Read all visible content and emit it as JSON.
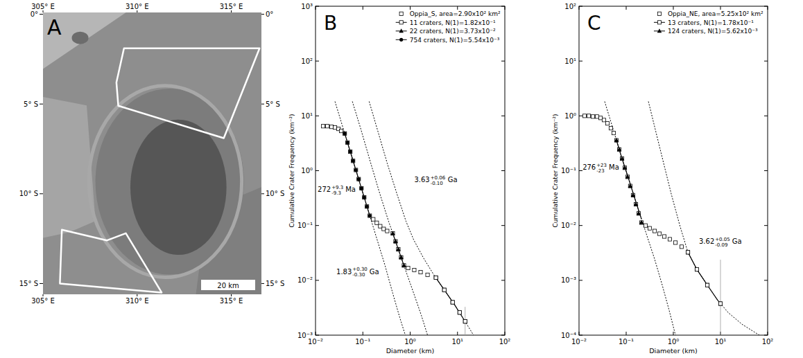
{
  "chart_data": [
    {
      "type": "map",
      "panel": "A",
      "xlim": [
        305,
        316.6
      ],
      "ylim": [
        -15.6,
        0.1
      ],
      "xticks": [
        {
          "value": 305,
          "label": "305° E"
        },
        {
          "value": 310,
          "label": "310° E"
        },
        {
          "value": 315,
          "label": "315° E"
        }
      ],
      "yticks": [
        {
          "value": 0,
          "label": "0°"
        },
        {
          "value": -5,
          "label": "5° S"
        },
        {
          "value": -10,
          "label": "10° S"
        },
        {
          "value": -15,
          "label": "15° S"
        }
      ],
      "regions": [
        {
          "color": "#ffffff",
          "lon": [
            309.3,
            316.5,
            314.6,
            309.0,
            308.9
          ],
          "lat": [
            -1.9,
            -1.9,
            -6.9,
            -5.1,
            -3.8
          ]
        },
        {
          "color": "#ffffff",
          "lon": [
            306.0,
            308.4,
            309.4,
            311.3,
            305.9
          ],
          "lat": [
            -12.0,
            -12.6,
            -12.2,
            -15.5,
            -15.0
          ]
        }
      ],
      "scale_bar": "20 km"
    },
    {
      "type": "line",
      "panel": "B",
      "log": true,
      "legend": "upper right",
      "x_label": "Diameter (km)",
      "y_label": "Cumulative Crater Frequency (km⁻²)",
      "xlim": [
        0.01,
        100
      ],
      "ylim": [
        0.001,
        1000
      ],
      "xticks": [
        {
          "value": 0.01,
          "label": "10⁻²"
        },
        {
          "value": 0.1,
          "label": "10⁻¹"
        },
        {
          "value": 1,
          "label": "10⁰"
        },
        {
          "value": 10,
          "label": "10¹"
        },
        {
          "value": 100,
          "label": "10²"
        }
      ],
      "yticks": [
        {
          "value": 0.001,
          "label": "10⁻³"
        },
        {
          "value": 0.01,
          "label": "10⁻²"
        },
        {
          "value": 0.1,
          "label": "10⁻¹"
        },
        {
          "value": 1,
          "label": "10⁰"
        },
        {
          "value": 10,
          "label": "10¹"
        },
        {
          "value": 100,
          "label": "10²"
        },
        {
          "value": 1000,
          "label": "10³"
        }
      ],
      "series": [
        {
          "name": "Oppia_S, area=2.90x10² km²",
          "type": "scatter",
          "marker": "square",
          "color": "#000000",
          "x": [
            0.0145,
            0.0178,
            0.0218,
            0.0258,
            0.0306,
            0.035,
            0.0415,
            0.0474,
            0.0543,
            0.0622,
            0.0713,
            0.0817,
            0.0935,
            0.107,
            0.122,
            0.14,
            0.166,
            0.197,
            0.233,
            0.276,
            0.327,
            0.429,
            0.491,
            0.562,
            0.644,
            0.738,
            0.904,
            1.22,
            1.66,
            2.33,
            3.5,
            5.26,
            7.89,
            11.1,
            14.5
          ],
          "values": [
            6.49,
            6.49,
            6.31,
            6.13,
            5.79,
            5.31,
            4.77,
            3.25,
            2.22,
            1.51,
            1.03,
            0.702,
            0.478,
            0.326,
            0.222,
            0.151,
            0.13,
            0.112,
            0.0972,
            0.0866,
            0.0794,
            0.0718,
            0.0513,
            0.0367,
            0.0262,
            0.0187,
            0.0168,
            0.0154,
            0.0141,
            0.0126,
            0.0112,
            0.00668,
            0.00398,
            0.00259,
            0.00178
          ],
          "errors": [
            null,
            null,
            null,
            null,
            null,
            null,
            null,
            null,
            null,
            null,
            null,
            null,
            null,
            null,
            null,
            null,
            null,
            null,
            null,
            null,
            null,
            null,
            null,
            null,
            null,
            null,
            null,
            null,
            null,
            null,
            null,
            null,
            null,
            null,
            0.0015
          ]
        },
        {
          "name": "11 craters, N(1)=1.82x10⁻¹",
          "type": "line",
          "marker": "square",
          "line_style": "dashed",
          "color": "#000000",
          "x": [
            0.136,
            0.211,
            0.327,
            0.526,
            0.817,
            1.19,
            1.9,
            3.16,
            5.26,
            8.73,
            13.6,
            21.8
          ],
          "values": [
            18.3,
            5.01,
            1.37,
            0.376,
            0.119,
            0.0546,
            0.0258,
            0.0126,
            0.00668,
            0.00355,
            0.00194,
            0.001
          ],
          "fit_range": [
            3.27,
            14.5
          ],
          "fit_x": [
            3.5,
            5.26,
            7.89,
            11.1,
            14.5
          ],
          "fit_values": [
            0.0112,
            0.00668,
            0.00398,
            0.00259,
            0.00178
          ],
          "annotation": {
            "text": "3.63",
            "upper": "+0.06",
            "lower": "-0.10",
            "unit": "Ga",
            "x": 1.22,
            "y": 0.613
          }
        },
        {
          "name": "22 craters, N(1)=3.73x10⁻²",
          "type": "line",
          "marker": "triangle",
          "line_style": "dashed",
          "color": "#000000",
          "x": [
            0.0601,
            0.0904,
            0.14,
            0.218,
            0.35,
            0.526,
            0.789,
            1.19,
            1.72,
            2.33
          ],
          "values": [
            18.3,
            5.79,
            1.58,
            0.434,
            0.119,
            0.0434,
            0.0158,
            0.00578,
            0.0023,
            0.001
          ],
          "fit_range": [
            0.429,
            0.738
          ],
          "fit_x": [
            0.429,
            0.491,
            0.562,
            0.644,
            0.738
          ],
          "fit_values": [
            0.0718,
            0.0513,
            0.0367,
            0.0262,
            0.0187
          ],
          "annotation": {
            "text": "1.83",
            "upper": "+0.30",
            "lower": "-0.30",
            "unit": "Ga",
            "x": 0.0276,
            "y": 0.013
          }
        },
        {
          "name": "754 craters, N(1)=5.54x10⁻³",
          "type": "line",
          "marker": "circle",
          "line_style": "dashed",
          "color": "#000000",
          "x": [
            0.0258,
            0.0387,
            0.0582,
            0.0873,
            0.131,
            0.197,
            0.296,
            0.429,
            0.601,
            0.789
          ],
          "values": [
            18.3,
            5.79,
            1.83,
            0.578,
            0.183,
            0.0578,
            0.0183,
            0.00578,
            0.00211,
            0.001
          ],
          "fit_range": [
            0.0415,
            0.14
          ],
          "fit_x": [
            0.0415,
            0.0474,
            0.0543,
            0.0622,
            0.0713,
            0.0817,
            0.0935,
            0.107,
            0.122,
            0.14
          ],
          "fit_values": [
            4.77,
            3.25,
            2.22,
            1.51,
            1.03,
            0.702,
            0.478,
            0.326,
            0.222,
            0.151
          ],
          "annotation": {
            "text": "272",
            "upper": "+9.3",
            "lower": "-9.3",
            "unit": "Ma",
            "x": 0.0111,
            "y": 0.41
          }
        }
      ]
    },
    {
      "type": "line",
      "panel": "C",
      "log": true,
      "legend": "upper right",
      "x_label": "Diameter (km)",
      "y_label": "Cumulative Crater Frequency (km⁻²)",
      "xlim": [
        0.01,
        100
      ],
      "ylim": [
        0.0001,
        100
      ],
      "xticks": [
        {
          "value": 0.01,
          "label": "10⁻²"
        },
        {
          "value": 0.1,
          "label": "10⁻¹"
        },
        {
          "value": 1,
          "label": "10⁰"
        },
        {
          "value": 10,
          "label": "10¹"
        },
        {
          "value": 100,
          "label": "10²"
        }
      ],
      "yticks": [
        {
          "value": 0.0001,
          "label": "10⁻⁴"
        },
        {
          "value": 0.001,
          "label": "10⁻³"
        },
        {
          "value": 0.01,
          "label": "10⁻²"
        },
        {
          "value": 0.1,
          "label": "10⁻¹"
        },
        {
          "value": 1,
          "label": "10⁰"
        },
        {
          "value": 10,
          "label": "10¹"
        },
        {
          "value": 100,
          "label": "10²"
        }
      ],
      "series": [
        {
          "name": "Oppia_NE, area=5.25x10² km²",
          "type": "scatter",
          "marker": "square",
          "color": "#000000",
          "x": [
            0.0131,
            0.0161,
            0.0197,
            0.0241,
            0.0286,
            0.0338,
            0.0401,
            0.0474,
            0.0543,
            0.0622,
            0.0713,
            0.0817,
            0.0935,
            0.107,
            0.122,
            0.14,
            0.161,
            0.184,
            0.211,
            0.258,
            0.316,
            0.401,
            0.508,
            0.644,
            0.843,
            1.11,
            1.5,
            2.04,
            3.16,
            5.26,
            10.0
          ],
          "values": [
            1.0,
            1.0,
            0.972,
            0.972,
            0.917,
            0.841,
            0.729,
            0.596,
            0.487,
            0.358,
            0.244,
            0.166,
            0.113,
            0.0772,
            0.0526,
            0.0358,
            0.0244,
            0.0166,
            0.0113,
            0.01,
            0.00891,
            0.00794,
            0.00708,
            0.00631,
            0.00562,
            0.00487,
            0.0041,
            0.00325,
            0.00158,
            0.000818,
            0.000376
          ],
          "errors": [
            null,
            null,
            null,
            null,
            null,
            null,
            null,
            null,
            null,
            null,
            null,
            null,
            null,
            null,
            null,
            null,
            null,
            null,
            null,
            null,
            null,
            null,
            null,
            null,
            null,
            null,
            null,
            null,
            null,
            null,
            0.002
          ]
        },
        {
          "name": "13 craters, N(1)=1.78x10⁻¹",
          "type": "line",
          "marker": "square",
          "line_style": "dashed",
          "color": "#000000",
          "x": [
            0.296,
            0.429,
            0.622,
            0.904,
            1.36,
            2.04,
            3.16,
            5.26,
            8.73,
            14.5,
            28.6,
            66.7
          ],
          "values": [
            1.83,
            0.501,
            0.137,
            0.0376,
            0.0103,
            0.00325,
            0.00158,
            0.000818,
            0.000434,
            0.000259,
            0.000158,
            0.0001
          ],
          "fit_range": [
            2.04,
            10.0
          ],
          "fit_x": [
            2.04,
            3.16,
            5.26,
            10.0
          ],
          "fit_values": [
            0.00325,
            0.00158,
            0.000818,
            0.000376
          ],
          "annotation": {
            "text": "3.62",
            "upper": "+0.05",
            "lower": "-0.09",
            "unit": "Ga",
            "x": 3.5,
            "y": 0.0046
          }
        },
        {
          "name": "124 craters, N(1)=5.62x10⁻³",
          "type": "line",
          "marker": "triangle",
          "line_style": "dashed",
          "color": "#000000",
          "x": [
            0.035,
            0.0526,
            0.0789,
            0.119,
            0.178,
            0.267,
            0.401,
            0.582,
            0.817,
            1.11
          ],
          "values": [
            1.83,
            0.579,
            0.183,
            0.0613,
            0.0205,
            0.00708,
            0.00244,
            0.000818,
            0.000282,
            0.0001
          ],
          "fit_range": [
            0.0622,
            0.211
          ],
          "fit_x": [
            0.0622,
            0.0713,
            0.0817,
            0.0935,
            0.107,
            0.122,
            0.14,
            0.161,
            0.184,
            0.211
          ],
          "fit_values": [
            0.358,
            0.244,
            0.166,
            0.113,
            0.0772,
            0.0526,
            0.0358,
            0.0244,
            0.0166,
            0.0113
          ],
          "annotation": {
            "text": "276",
            "upper": "+23",
            "lower": "-23",
            "unit": "Ma",
            "x": 0.0119,
            "y": 0.103
          }
        }
      ]
    }
  ]
}
